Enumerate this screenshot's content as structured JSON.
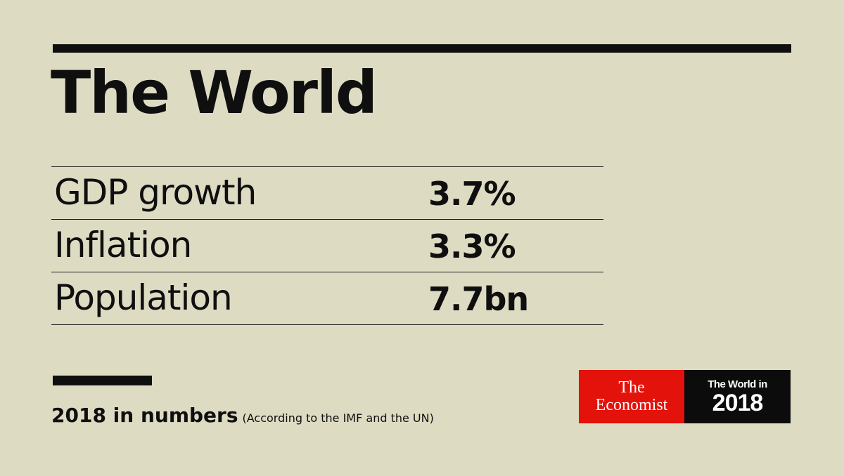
{
  "title": "The World",
  "stats": [
    {
      "label": "GDP growth",
      "value": "3.7%"
    },
    {
      "label": "Inflation",
      "value": "3.3%"
    },
    {
      "label": "Population",
      "value": "7.7bn"
    }
  ],
  "footer": {
    "main": "2018 in numbers",
    "note": "(According to the IMF and the UN)"
  },
  "brand": {
    "publisher_line1": "The",
    "publisher_line2": "Economist",
    "edition_line1": "The World in",
    "edition_line2": "2018"
  },
  "colors": {
    "background": "#dedbc3",
    "brand_red": "#e3120b",
    "ink": "#0f0f0f"
  }
}
